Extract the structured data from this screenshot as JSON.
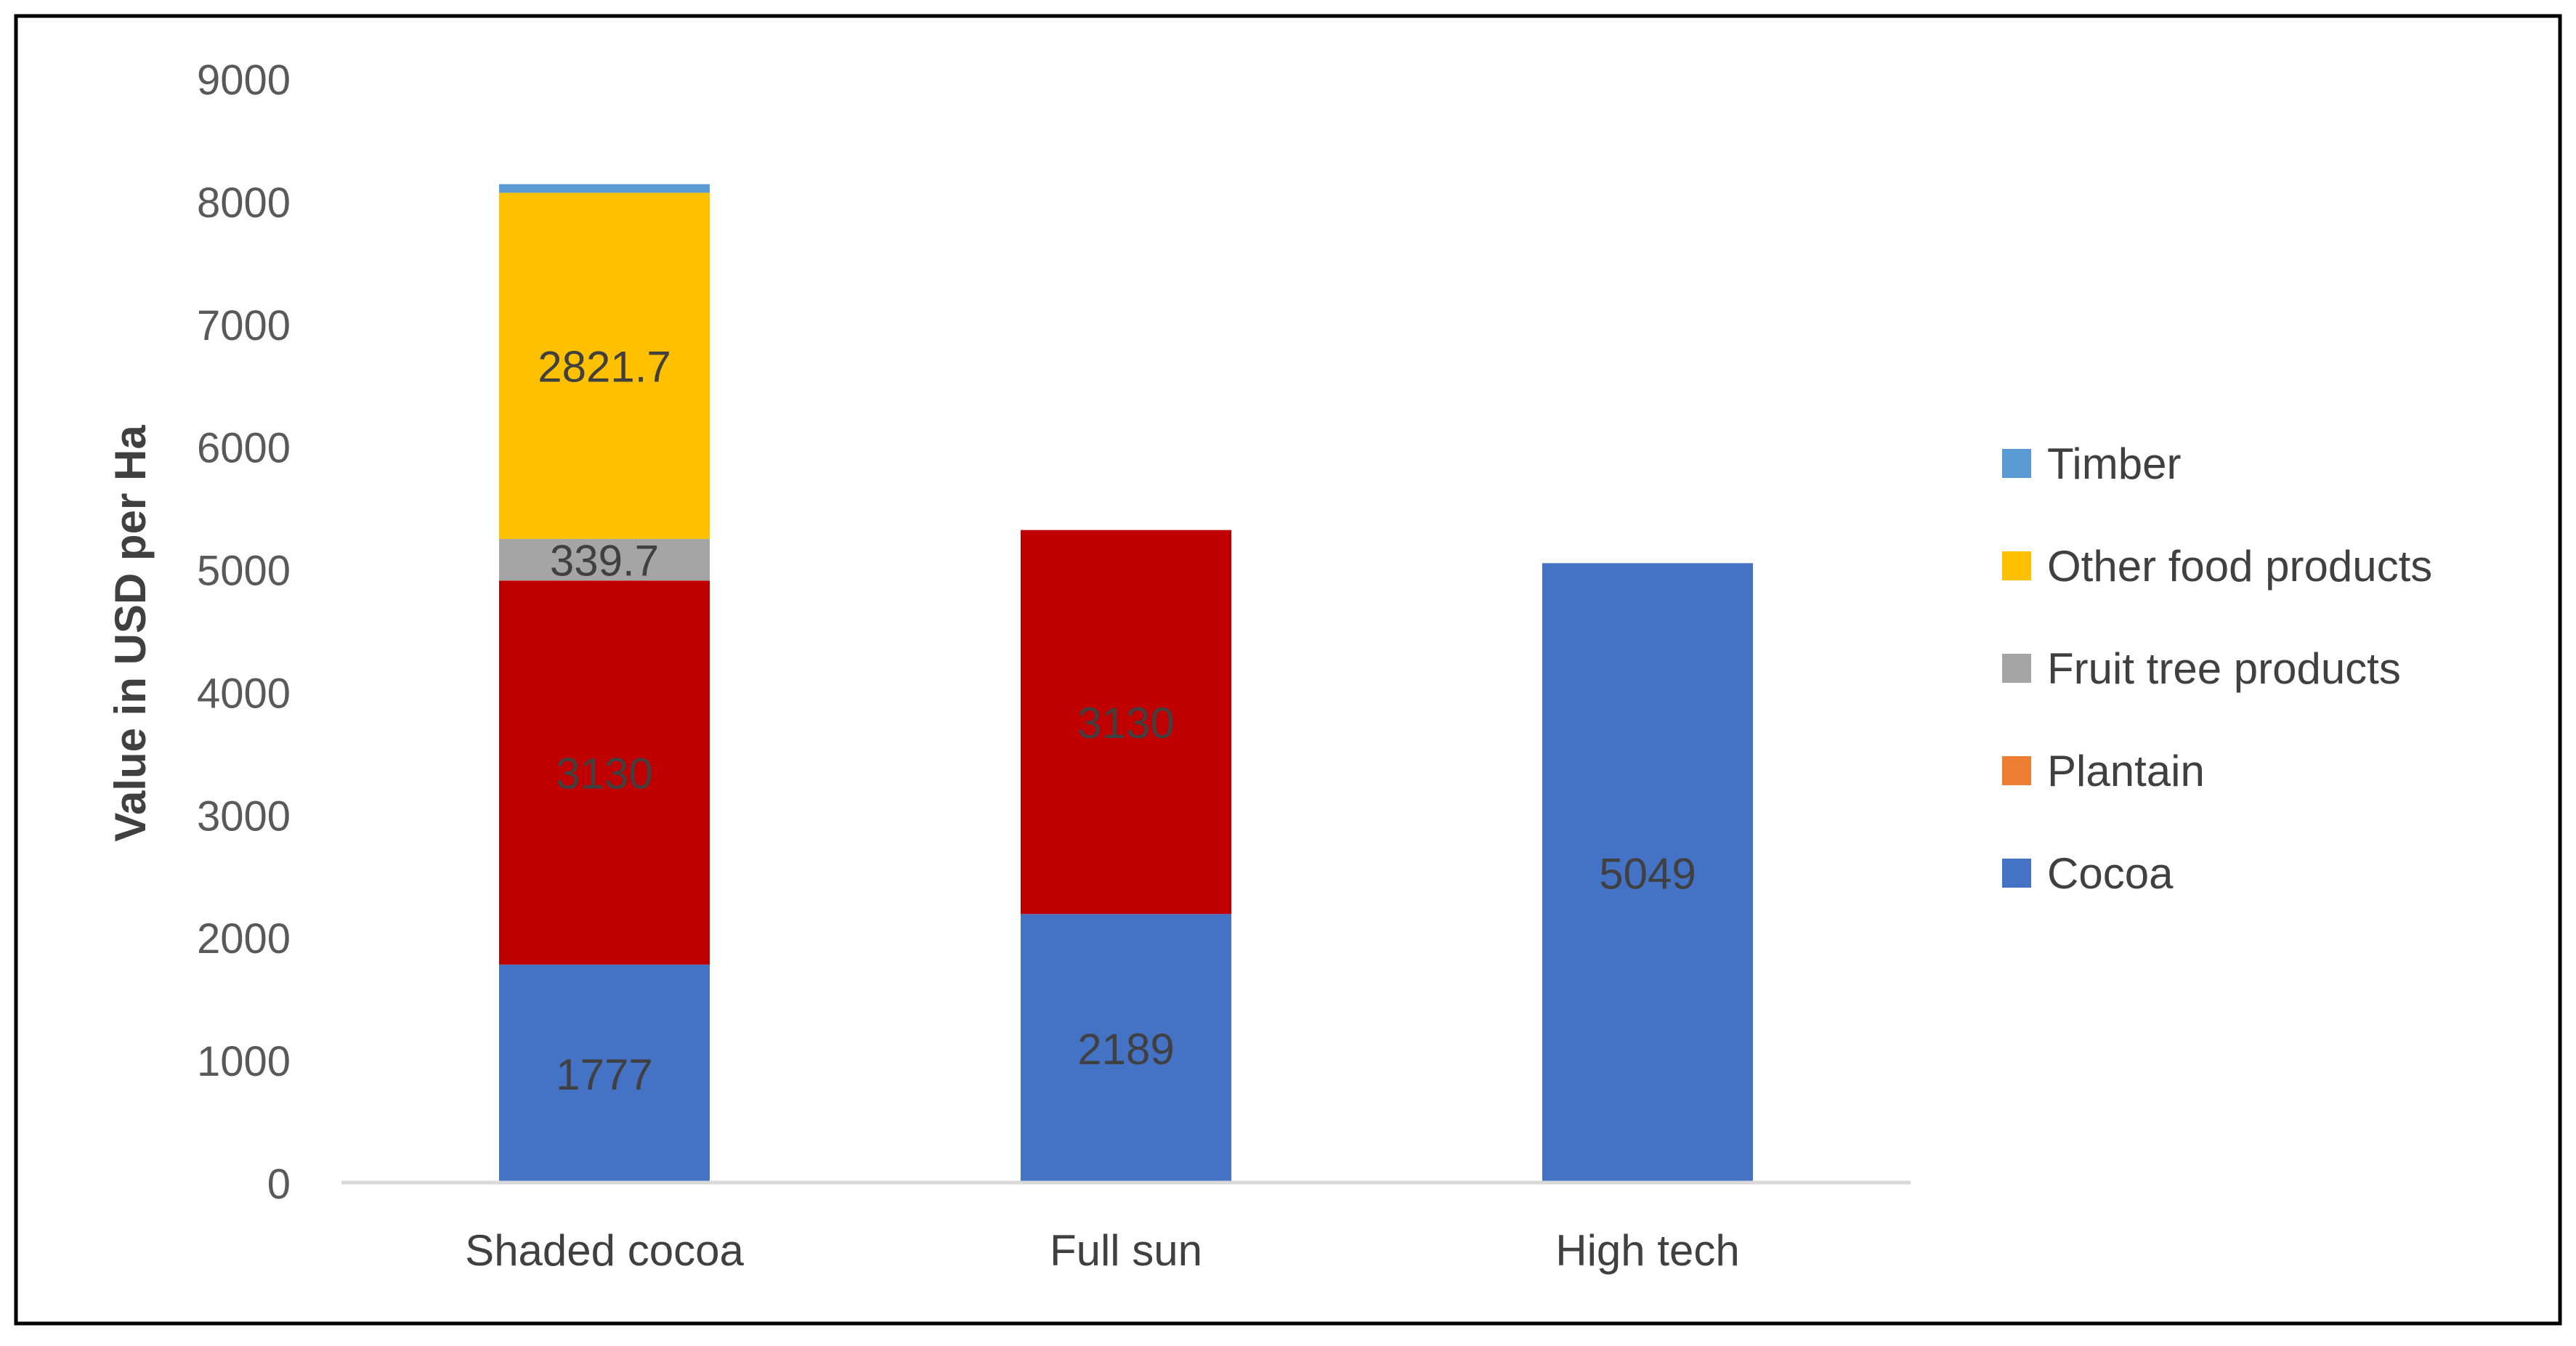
{
  "chart_data": {
    "type": "bar",
    "stacked": true,
    "title": "",
    "xlabel": "",
    "ylabel": "Value in USD per Ha",
    "ylim": [
      0,
      9000
    ],
    "yticks": [
      0,
      1000,
      2000,
      3000,
      4000,
      5000,
      6000,
      7000,
      8000,
      9000
    ],
    "gridlines": false,
    "legend_position": "right",
    "categories": [
      "Shaded cocoa",
      "Full sun",
      "High tech"
    ],
    "series": [
      {
        "name": "Cocoa",
        "color": "#4472C4",
        "values": [
          1777,
          2189,
          5049
        ],
        "labels": [
          "1777",
          "2189",
          "5049"
        ]
      },
      {
        "name": "Plantain",
        "color": "#ED7D31",
        "values": [
          3130,
          3130,
          0
        ],
        "labels": [
          "3130",
          "3130",
          ""
        ]
      },
      {
        "name": "Fruit tree products",
        "color": "#A5A5A5",
        "values": [
          339.7,
          0,
          0
        ],
        "labels": [
          "339.7",
          "",
          ""
        ]
      },
      {
        "name": "Other food products",
        "color": "#FFC000",
        "values": [
          2821.7,
          0,
          0
        ],
        "labels": [
          "2821.7",
          "",
          ""
        ]
      },
      {
        "name": "Timber",
        "color": "#5B9BD5",
        "values": [
          70,
          0,
          0
        ],
        "labels": [
          "",
          "",
          ""
        ]
      }
    ],
    "plantain_fill_color": "#C00000",
    "legend_order": [
      "Timber",
      "Other food products",
      "Fruit tree products",
      "Plantain",
      "Cocoa"
    ]
  }
}
